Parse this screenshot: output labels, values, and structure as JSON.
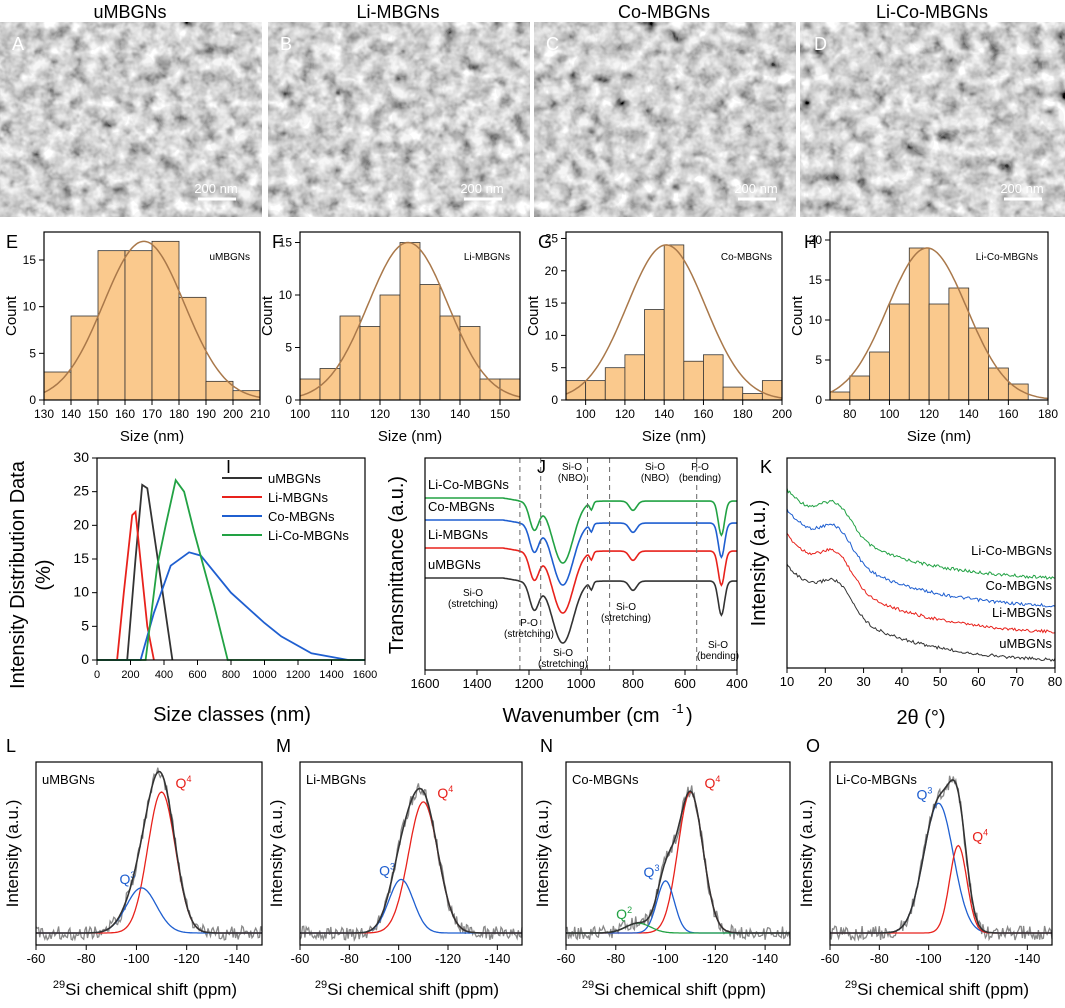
{
  "sem": [
    {
      "letter": "A",
      "title": "uMBGNs",
      "scale": "200 nm"
    },
    {
      "letter": "B",
      "title": "Li-MBGNs",
      "scale": "200 nm"
    },
    {
      "letter": "C",
      "title": "Co-MBGNs",
      "scale": "200 nm"
    },
    {
      "letter": "D",
      "title": "Li-Co-MBGNs",
      "scale": "200 nm"
    }
  ],
  "chart_data": [
    {
      "id": "E",
      "type": "bar",
      "title": "uMBGNs",
      "xlabel": "Size (nm)",
      "ylabel": "Count",
      "xlim": [
        130,
        210
      ],
      "ylim": [
        0,
        18
      ],
      "xticks": [
        130,
        140,
        150,
        160,
        170,
        180,
        190,
        200,
        210
      ],
      "yticks": [
        0,
        5,
        10,
        15
      ],
      "bin_start": 130,
      "bin_width": 10,
      "values": [
        3,
        9,
        16,
        16,
        17,
        11,
        2,
        1
      ],
      "fit": {
        "mu": 167,
        "sigma": 15,
        "peak": 17
      }
    },
    {
      "id": "F",
      "type": "bar",
      "title": "Li-MBGNs",
      "xlabel": "Size (nm)",
      "ylabel": "Count",
      "xlim": [
        100,
        155
      ],
      "ylim": [
        0,
        16
      ],
      "xticks": [
        100,
        110,
        120,
        130,
        140,
        150
      ],
      "yticks": [
        0,
        5,
        10,
        15
      ],
      "bin_start": 100,
      "bin_width": 5,
      "values": [
        2,
        3,
        8,
        7,
        10,
        15,
        11,
        8,
        7,
        2,
        2
      ],
      "fit": {
        "mu": 127,
        "sigma": 10,
        "peak": 15
      }
    },
    {
      "id": "G",
      "type": "bar",
      "title": "Co-MBGNs",
      "xlabel": "Size (nm)",
      "ylabel": "Count",
      "xlim": [
        90,
        200
      ],
      "ylim": [
        0,
        26
      ],
      "xticks": [
        100,
        120,
        140,
        160,
        180,
        200
      ],
      "yticks": [
        0,
        5,
        10,
        15,
        20,
        25
      ],
      "bin_start": 90,
      "bin_width": 10,
      "values": [
        3,
        3,
        5,
        7,
        14,
        24,
        6,
        7,
        2,
        1,
        3
      ],
      "fit": {
        "mu": 141,
        "sigma": 20,
        "peak": 24
      }
    },
    {
      "id": "H",
      "type": "bar",
      "title": "Li-Co-MBGNs",
      "xlabel": "Size (nm)",
      "ylabel": "Count",
      "xlim": [
        70,
        180
      ],
      "ylim": [
        0,
        21
      ],
      "xticks": [
        80,
        100,
        120,
        140,
        160,
        180
      ],
      "yticks": [
        0,
        5,
        10,
        15,
        20
      ],
      "bin_start": 70,
      "bin_width": 10,
      "values": [
        1,
        3,
        6,
        12,
        19,
        12,
        14,
        9,
        4,
        2
      ],
      "fit": {
        "mu": 119,
        "sigma": 20,
        "peak": 19
      }
    },
    {
      "id": "I",
      "type": "line",
      "xlabel": "Size classes (nm)",
      "ylabel": "Intensity Distribution Data",
      "ylabel2": "(%)",
      "xlim": [
        0,
        1600
      ],
      "ylim": [
        0,
        30
      ],
      "xticks": [
        0,
        200,
        400,
        600,
        800,
        1000,
        1200,
        1400,
        1600
      ],
      "yticks": [
        0,
        5,
        10,
        15,
        20,
        25,
        30
      ],
      "series": [
        {
          "name": "uMBGNs",
          "color": "#333333",
          "points": [
            [
              0,
              0
            ],
            [
              180,
              0
            ],
            [
              230,
              15
            ],
            [
              270,
              26
            ],
            [
              300,
              25.5
            ],
            [
              380,
              12
            ],
            [
              450,
              0
            ]
          ]
        },
        {
          "name": "Li-MBGNs",
          "color": "#e8221c",
          "points": [
            [
              0,
              0
            ],
            [
              120,
              0
            ],
            [
              160,
              10
            ],
            [
              210,
              21.5
            ],
            [
              230,
              22
            ],
            [
              300,
              5
            ],
            [
              340,
              0
            ]
          ]
        },
        {
          "name": "Co-MBGNs",
          "color": "#1f5fd0",
          "points": [
            [
              0,
              0
            ],
            [
              260,
              0
            ],
            [
              340,
              7
            ],
            [
              440,
              14
            ],
            [
              550,
              16
            ],
            [
              620,
              15.5
            ],
            [
              800,
              10
            ],
            [
              1000,
              5.5
            ],
            [
              1100,
              3.5
            ],
            [
              1280,
              1
            ],
            [
              1500,
              0
            ],
            [
              1600,
              0
            ]
          ]
        },
        {
          "name": "Li-Co-MBGNs",
          "color": "#22a244",
          "points": [
            [
              0,
              0
            ],
            [
              290,
              0
            ],
            [
              360,
              14
            ],
            [
              410,
              20
            ],
            [
              470,
              26.7
            ],
            [
              520,
              25
            ],
            [
              580,
              19
            ],
            [
              700,
              8
            ],
            [
              780,
              0
            ],
            [
              1600,
              0
            ]
          ]
        }
      ]
    },
    {
      "id": "J",
      "type": "line",
      "xlabel": "Wavenumber (cm-1)",
      "ylabel": "Transmittance (a.u.)",
      "xlim": [
        1600,
        400
      ],
      "xticks": [
        1600,
        1400,
        1200,
        1000,
        800,
        600,
        400
      ],
      "series_labels": [
        "Li-Co-MBGNs",
        "Co-MBGNs",
        "Li-MBGNs",
        "uMBGNs"
      ],
      "colors": [
        "#22a244",
        "#1f5fd0",
        "#e8221c",
        "#333333"
      ],
      "dashes": [
        1235,
        1155,
        975,
        890,
        555
      ],
      "annotations_top": [
        "Si-O",
        "(NBO)",
        "Si-O",
        "(NBO)",
        "P-O",
        "(bending)"
      ],
      "annotations_bottom": [
        "Si-O",
        "(stretching)",
        "P-O",
        "(stretching)",
        "Si-O",
        "(stretching)",
        "Si-O",
        "(stretching)",
        "Si-O",
        "(bending)"
      ]
    },
    {
      "id": "K",
      "type": "line",
      "xlabel": "2θ (°)",
      "ylabel": "Intensity (a.u.)",
      "xlim": [
        10,
        80
      ],
      "xticks": [
        10,
        20,
        30,
        40,
        50,
        60,
        70,
        80
      ],
      "series_labels": [
        "Li-Co-MBGNs",
        "Co-MBGNs",
        "Li-MBGNs",
        "uMBGNs"
      ],
      "colors": [
        "#22a244",
        "#1f5fd0",
        "#e8221c",
        "#333333"
      ]
    },
    {
      "id": "L",
      "type": "line",
      "title": "uMBGNs",
      "xlabel": "29Si chemical shift (ppm)",
      "ylabel": "Intensity (a.u.)",
      "xlim": [
        -60,
        -150
      ],
      "xticks": [
        -60,
        -80,
        -100,
        -120,
        -140
      ],
      "peaks": [
        {
          "label": "Q4",
          "color": "#e8221c",
          "center": -110,
          "width": 5.5,
          "amp": 1.0
        },
        {
          "label": "Q3",
          "color": "#1f5fd0",
          "center": -102,
          "width": 6,
          "amp": 0.32
        }
      ]
    },
    {
      "id": "M",
      "type": "line",
      "title": "Li-MBGNs",
      "xlabel": "29Si chemical shift (ppm)",
      "ylabel": "Intensity (a.u.)",
      "xlim": [
        -60,
        -150
      ],
      "xticks": [
        -60,
        -80,
        -100,
        -120,
        -140
      ],
      "peaks": [
        {
          "label": "Q4",
          "color": "#e8221c",
          "center": -110,
          "width": 6,
          "amp": 0.93
        },
        {
          "label": "Q3",
          "color": "#1f5fd0",
          "center": -101,
          "width": 5,
          "amp": 0.38
        }
      ]
    },
    {
      "id": "N",
      "type": "line",
      "title": "Co-MBGNs",
      "xlabel": "29Si chemical shift (ppm)",
      "ylabel": "Intensity (a.u.)",
      "xlim": [
        -60,
        -150
      ],
      "xticks": [
        -60,
        -80,
        -100,
        -120,
        -140
      ],
      "peaks": [
        {
          "label": "Q4",
          "color": "#e8221c",
          "center": -110,
          "width": 5,
          "amp": 1.0
        },
        {
          "label": "Q3",
          "color": "#1f5fd0",
          "center": -100,
          "width": 3.5,
          "amp": 0.37
        },
        {
          "label": "Q2",
          "color": "#22a244",
          "center": -89,
          "width": 5,
          "amp": 0.07
        }
      ]
    },
    {
      "id": "O",
      "type": "line",
      "title": "Li-Co-MBGNs",
      "xlabel": "29Si chemical shift (ppm)",
      "ylabel": "Intensity (a.u.)",
      "xlim": [
        -60,
        -150
      ],
      "xticks": [
        -60,
        -80,
        -100,
        -120,
        -140
      ],
      "peaks": [
        {
          "label": "Q3",
          "color": "#1f5fd0",
          "center": -104,
          "width": 6,
          "amp": 0.92
        },
        {
          "label": "Q4",
          "color": "#e8221c",
          "center": -112,
          "width": 3.5,
          "amp": 0.62
        }
      ]
    }
  ]
}
